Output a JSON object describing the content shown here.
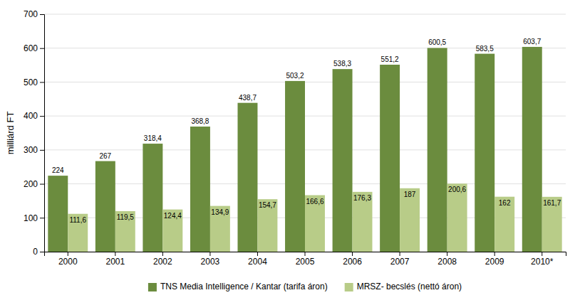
{
  "chart_data": {
    "type": "bar",
    "ylabel": "milliárd FT",
    "categories": [
      "2000",
      "2001",
      "2002",
      "2003",
      "2004",
      "2005",
      "2006",
      "2007",
      "2008",
      "2009",
      "2010*"
    ],
    "series": [
      {
        "name": "TNS Media Intelligence / Kantar (tarifa áron)",
        "color": "#6b8c3e",
        "values": [
          224,
          267,
          318.4,
          368.8,
          438.7,
          503.2,
          538.3,
          551.2,
          600.5,
          583.5,
          603.7
        ],
        "value_labels": [
          "224",
          "267",
          "318,4",
          "368,8",
          "438,7",
          "503,2",
          "538,3",
          "551,2",
          "600,5",
          "583,5",
          "603,7"
        ]
      },
      {
        "name": "MRSZ- becslés (nettó áron)",
        "color": "#b8cc88",
        "values": [
          111.6,
          119.5,
          124.4,
          134.9,
          154.7,
          166.6,
          176.3,
          187,
          200.6,
          162,
          161.7
        ],
        "value_labels": [
          "111,6",
          "119,5",
          "124,4",
          "134,9",
          "154,7",
          "166,6",
          "176,3",
          "187",
          "200,6",
          "162",
          "161,7"
        ]
      }
    ],
    "ylim": [
      0,
      700
    ],
    "yticks": [
      0,
      100,
      200,
      300,
      400,
      500,
      600,
      700
    ],
    "grid": true,
    "data_labels": true,
    "legend": "bottom"
  }
}
